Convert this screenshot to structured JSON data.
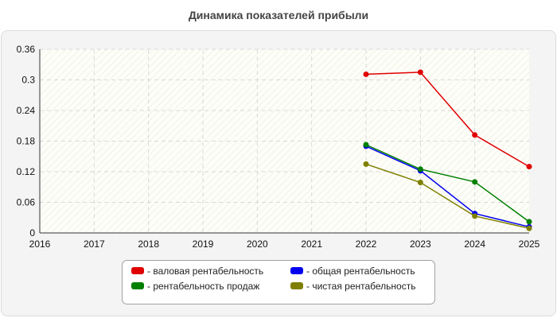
{
  "chart_data": {
    "type": "line",
    "title": "Динамика показателей прибыли",
    "xlabel": "",
    "ylabel": "",
    "x": [
      2016,
      2017,
      2018,
      2019,
      2020,
      2021,
      2022,
      2023,
      2024,
      2025
    ],
    "x_tick_labels": [
      "2016",
      "2017",
      "2018",
      "2019",
      "2020",
      "2021",
      "2022",
      "2023",
      "2024",
      "2025"
    ],
    "ylim": [
      0,
      0.36
    ],
    "y_ticks": [
      0,
      0.06,
      0.12,
      0.18,
      0.24,
      0.3,
      0.36
    ],
    "y_tick_labels": [
      "0",
      "0.06",
      "0.12",
      "0.18",
      "0.24",
      "0.3",
      "0.36"
    ],
    "grid": true,
    "legend_position": "bottom-center",
    "series": [
      {
        "name": "- валовая рентабельность",
        "color": "#e00000",
        "x": [
          2022,
          2023,
          2024,
          2025
        ],
        "values": [
          0.311,
          0.315,
          0.192,
          0.13
        ]
      },
      {
        "name": "- общая рентабельность",
        "color": "#0000ee",
        "x": [
          2022,
          2023,
          2024,
          2025
        ],
        "values": [
          0.17,
          0.122,
          0.038,
          0.012
        ]
      },
      {
        "name": "- рентабельность продаж",
        "color": "#008000",
        "x": [
          2022,
          2023,
          2024,
          2025
        ],
        "values": [
          0.173,
          0.125,
          0.1,
          0.022
        ]
      },
      {
        "name": "- чистая рентабельность",
        "color": "#7f7f00",
        "x": [
          2022,
          2023,
          2024,
          2025
        ],
        "values": [
          0.135,
          0.099,
          0.033,
          0.009
        ]
      }
    ]
  }
}
